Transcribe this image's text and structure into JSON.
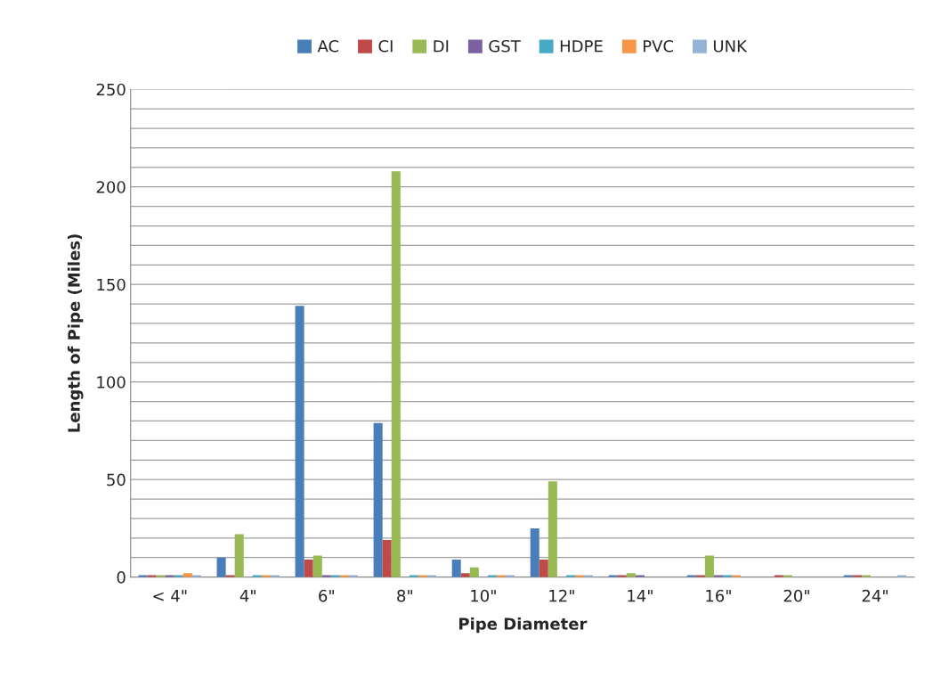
{
  "chart_data": {
    "type": "bar",
    "xlabel": "Pipe Diameter",
    "ylabel": "Length of Pipe (Miles)",
    "categories": [
      "< 4\"",
      "4\"",
      "6\"",
      "8\"",
      "10\"",
      "12\"",
      "14\"",
      "16\"",
      "20\"",
      "24\""
    ],
    "series": [
      {
        "name": "AC",
        "color": "#4a7ebb",
        "values": [
          1,
          10,
          139,
          79,
          9,
          25,
          1,
          1,
          null,
          1
        ]
      },
      {
        "name": "CI",
        "color": "#be4b48",
        "values": [
          1,
          1,
          9,
          19,
          2,
          9,
          1,
          1,
          1,
          1
        ]
      },
      {
        "name": "DI",
        "color": "#98b954",
        "values": [
          1,
          22,
          11,
          208,
          5,
          49,
          2,
          11,
          1,
          1
        ]
      },
      {
        "name": "GST",
        "color": "#7d60a0",
        "values": [
          1,
          0,
          1,
          0,
          0,
          0,
          1,
          1,
          0,
          0
        ]
      },
      {
        "name": "HDPE",
        "color": "#46aac5",
        "values": [
          1,
          1,
          1,
          1,
          1,
          1,
          0,
          1,
          0,
          0
        ]
      },
      {
        "name": "PVC",
        "color": "#f79646",
        "values": [
          2,
          1,
          1,
          1,
          1,
          1,
          0,
          1,
          0,
          0
        ]
      },
      {
        "name": "UNK",
        "color": "#95b3d7",
        "values": [
          1,
          1,
          1,
          1,
          1,
          1,
          0,
          0,
          0,
          1
        ]
      }
    ],
    "ylim": [
      0,
      250
    ],
    "yticks": [
      0,
      {
        "value": 10,
        "label": null
      },
      {
        "value": 20,
        "label": null
      },
      {
        "value": 30,
        "label": null
      },
      {
        "value": 40,
        "label": null
      },
      50,
      {
        "value": 60,
        "label": null
      },
      {
        "value": 70,
        "label": null
      },
      {
        "value": 80,
        "label": null
      },
      {
        "value": 90,
        "label": null
      },
      100,
      {
        "value": 110,
        "label": null
      },
      {
        "value": 120,
        "label": null
      },
      {
        "value": 130,
        "label": null
      },
      {
        "value": 140,
        "label": null
      },
      150,
      {
        "value": 160,
        "label": null
      },
      {
        "value": 170,
        "label": null
      },
      {
        "value": 180,
        "label": null
      },
      {
        "value": 190,
        "label": null
      },
      200,
      {
        "value": 210,
        "label": null
      },
      {
        "value": 220,
        "label": null
      },
      {
        "value": 230,
        "label": null
      },
      {
        "value": 240,
        "label": null
      },
      250
    ],
    "grid": "y",
    "legend": "top"
  }
}
